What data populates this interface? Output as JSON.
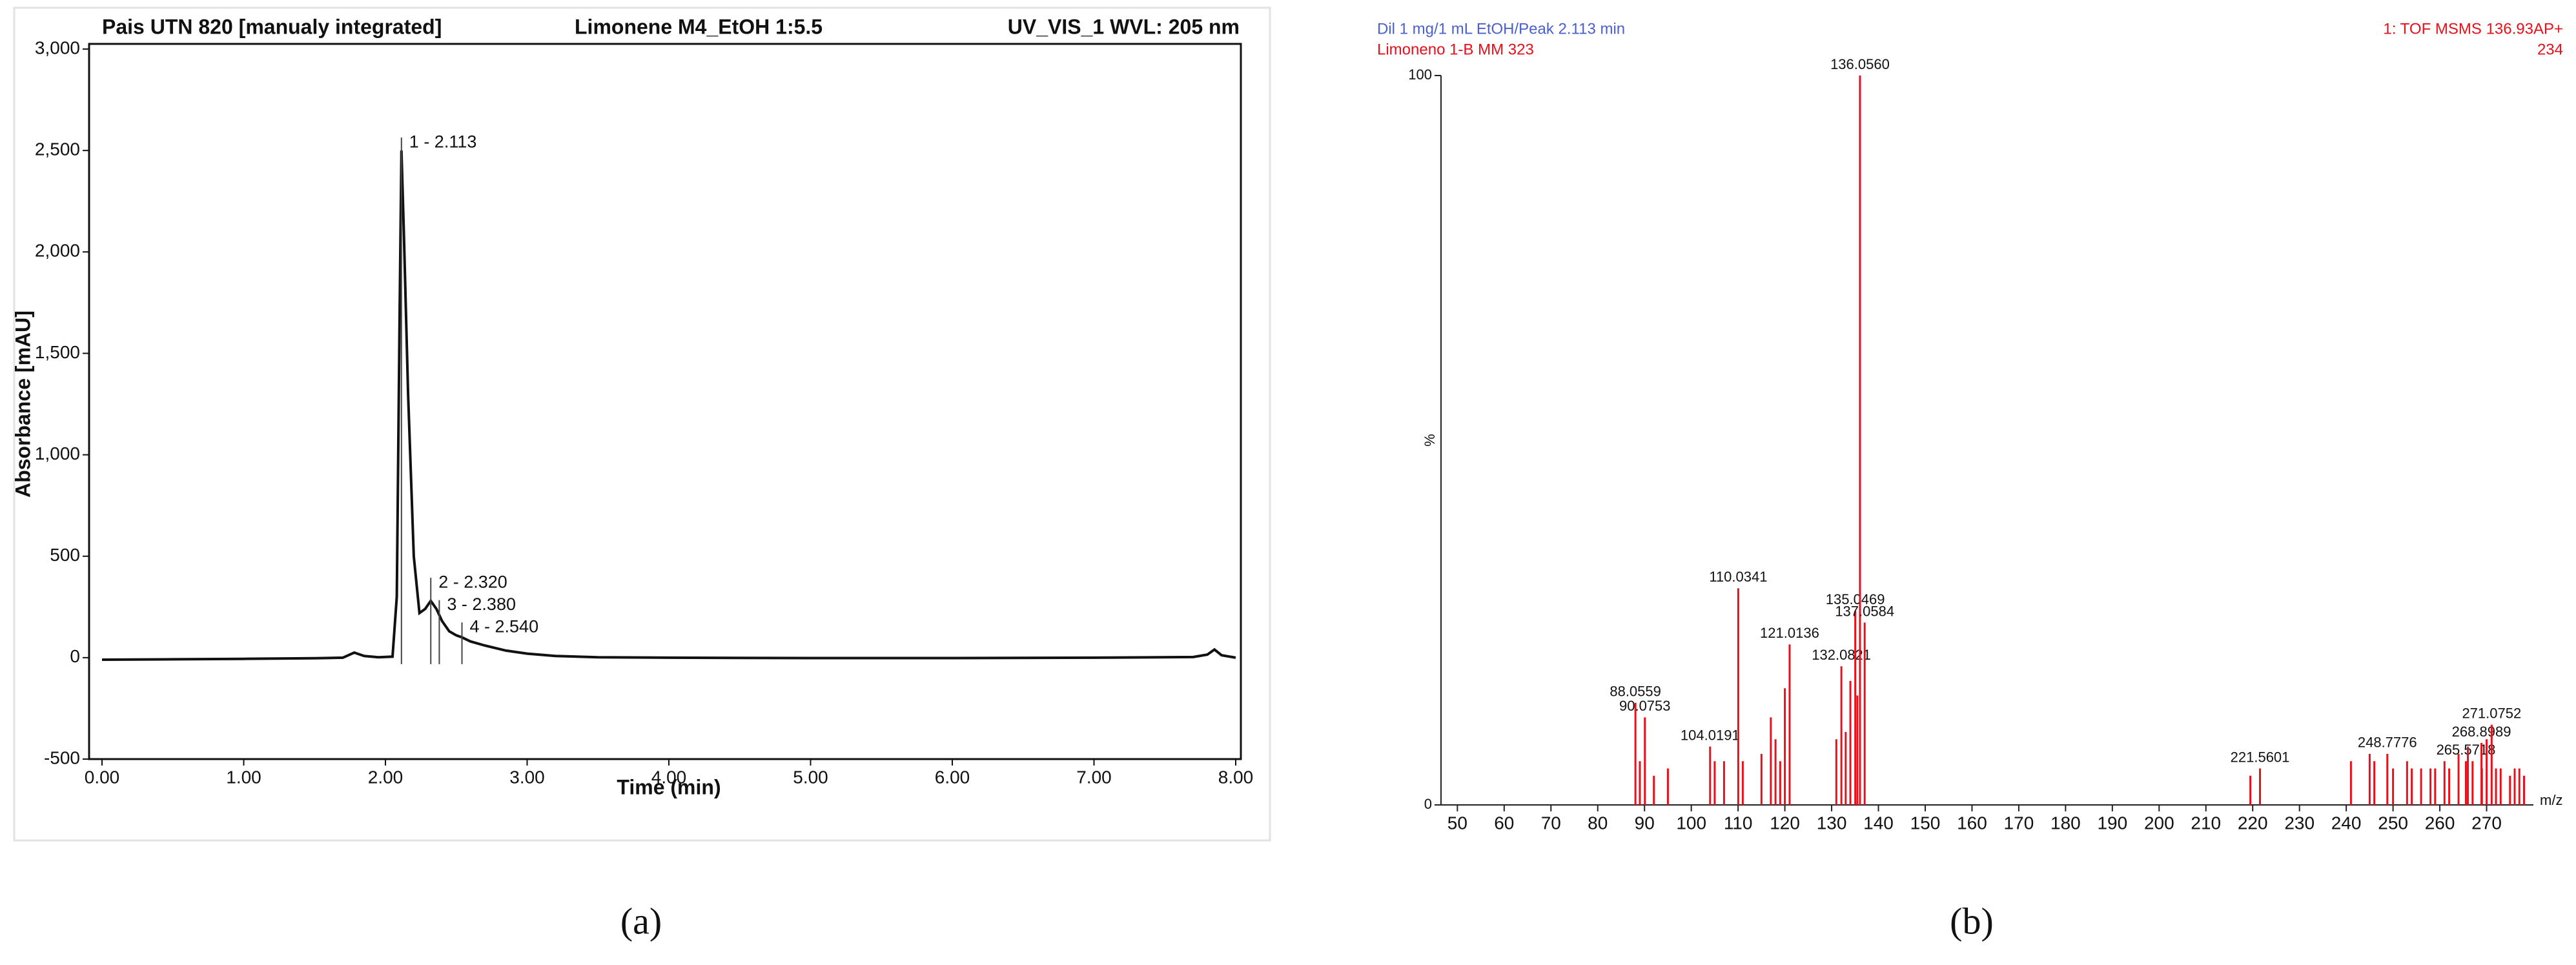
{
  "chart_data": [
    {
      "type": "line",
      "title": "Pais UTN 820 [manualy integrated]",
      "subtitle": "Limonene M4_EtOH 1:5.5",
      "detector": "UV_VIS_1 WVL: 205 nm",
      "x_label": "Time (min)",
      "y_label": "Absorbance [mAU]",
      "panel_label": "(a)",
      "color": "#111111",
      "x": [
        0,
        0.5,
        1.0,
        1.5,
        1.7,
        1.78,
        1.85,
        1.95,
        2.05,
        2.08,
        2.1,
        2.113,
        2.13,
        2.16,
        2.2,
        2.24,
        2.28,
        2.32,
        2.36,
        2.4,
        2.45,
        2.5,
        2.54,
        2.6,
        2.7,
        2.85,
        3.0,
        3.2,
        3.5,
        4.0,
        5.0,
        6.0,
        7.0,
        7.7,
        7.8,
        7.85,
        7.9,
        8.0
      ],
      "values": [
        -10,
        -8,
        -6,
        -3,
        0,
        25,
        8,
        2,
        5,
        300,
        1700,
        2500,
        2100,
        1300,
        500,
        220,
        240,
        280,
        240,
        180,
        130,
        110,
        100,
        80,
        60,
        35,
        20,
        8,
        2,
        0,
        -2,
        -2,
        0,
        3,
        15,
        40,
        12,
        0
      ],
      "annotations": [
        {
          "text": "1 - 2.113",
          "x": 2.113,
          "y": 2500
        },
        {
          "text": "2 - 2.320",
          "x": 2.32,
          "y": 330
        },
        {
          "text": "3 - 2.380",
          "x": 2.38,
          "y": 220
        },
        {
          "text": "4 - 2.540",
          "x": 2.54,
          "y": 110
        }
      ],
      "xlim": [
        0,
        8
      ],
      "ylim": [
        -500,
        3000
      ],
      "xticks": [
        {
          "value": 0,
          "label": "0.00"
        },
        {
          "value": 1,
          "label": "1.00"
        },
        {
          "value": 2,
          "label": "2.00"
        },
        {
          "value": 3,
          "label": "3.00"
        },
        {
          "value": 4,
          "label": "4.00"
        },
        {
          "value": 5,
          "label": "5.00"
        },
        {
          "value": 6,
          "label": "6.00"
        },
        {
          "value": 7,
          "label": "7.00"
        },
        {
          "value": 8,
          "label": "8.00"
        }
      ],
      "yticks": [
        -500,
        0,
        500,
        {
          "value": 1000,
          "label": "1,000"
        },
        {
          "value": 1500,
          "label": "1,500"
        },
        {
          "value": 2000,
          "label": "2,000"
        },
        {
          "value": 2500,
          "label": "2,500"
        },
        {
          "value": 3000,
          "label": "3,000"
        }
      ]
    },
    {
      "type": "stem",
      "title": "Dil 1 mg/1 mL EtOH/Peak 2.113 min",
      "subtitle": "Limoneno 1-B MM 323",
      "detector": "1: TOF MSMS 136.93AP+",
      "detector_count": "234",
      "x_label": "m/z",
      "y_label": "%",
      "panel_label": "(b)",
      "series": [
        {
          "color": "#e8101a",
          "x": [
            88.0559,
            90.0753,
            104.0191,
            110.0341,
            121.0136,
            132.0821,
            135.0469,
            136.056,
            137.0584,
            221.5601,
            248.7776,
            265.5718,
            268.8989,
            271.0752
          ],
          "x_labels": [
            "88.0559",
            "90.0753",
            "104.0191",
            "110.0341",
            "121.0136",
            "132.0821",
            "135.0469",
            "136.0560",
            "137.0584",
            "221.5601",
            "248.7776",
            "265.5718",
            "268.8989",
            "271.0752"
          ],
          "values": [
            14,
            12,
            8,
            29.7,
            22,
            19,
            26.6,
            100,
            25,
            5,
            7,
            6,
            8.5,
            11
          ]
        },
        {
          "color": "#e8101a",
          "x": [
            89,
            92,
            95,
            105,
            107,
            111,
            115,
            117,
            118,
            119,
            120,
            131,
            133,
            134,
            135.5,
            219.5,
            241,
            245,
            246,
            250,
            253,
            254,
            256,
            258,
            259,
            261,
            262,
            264,
            266,
            267,
            269,
            270,
            272,
            273,
            275,
            276,
            277,
            278
          ],
          "values": [
            6,
            4,
            5,
            6,
            6,
            6,
            7,
            12,
            9,
            6,
            16,
            9,
            10,
            17,
            15,
            4,
            6,
            7,
            6,
            5,
            6,
            5,
            5,
            5,
            5,
            6,
            5,
            7,
            8,
            6,
            5,
            9,
            5,
            5,
            4,
            5,
            5,
            4
          ]
        }
      ],
      "xlim": [
        46.5,
        280
      ],
      "ylim": [
        0,
        100
      ],
      "xticks": [
        50,
        60,
        70,
        80,
        90,
        100,
        110,
        120,
        130,
        140,
        150,
        160,
        170,
        180,
        190,
        200,
        210,
        220,
        230,
        240,
        250,
        260,
        270
      ],
      "yticks": [
        0,
        100
      ]
    }
  ]
}
